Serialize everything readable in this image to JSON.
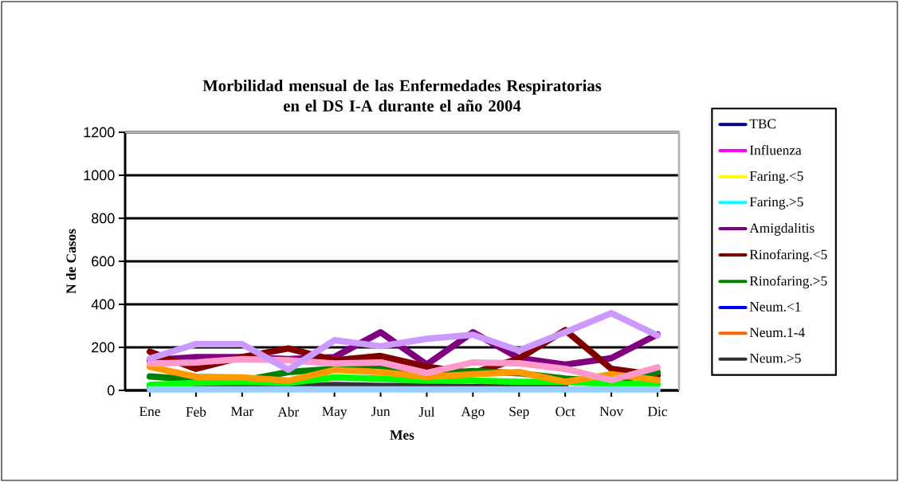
{
  "chart_data": {
    "type": "line",
    "title": "Morbilidad mensual de las Enfermedades Respiratorias\nen el  DS I-A  durante el año 2004",
    "xlabel": "Mes",
    "ylabel": "N de Casos",
    "categories": [
      "Ene",
      "Feb",
      "Mar",
      "Abr",
      "May",
      "Jun",
      "Jul",
      "Ago",
      "Sep",
      "Oct",
      "Nov",
      "Dic"
    ],
    "ylim": [
      0,
      1200
    ],
    "yticks": [
      0,
      200,
      400,
      600,
      800,
      1000,
      1200
    ],
    "grid": "y",
    "legend": "right",
    "series": [
      {
        "name": "TBC",
        "color": "#000080",
        "values": [
          null,
          null,
          null,
          null,
          null,
          null,
          null,
          null,
          null,
          null,
          null,
          null
        ]
      },
      {
        "name": "Influenza",
        "color": "#ff00ff",
        "values": [
          null,
          null,
          null,
          null,
          null,
          null,
          null,
          null,
          null,
          null,
          null,
          null
        ]
      },
      {
        "name": "Faring.<5",
        "color": "#ffff00",
        "values": [
          null,
          null,
          null,
          null,
          null,
          null,
          null,
          null,
          null,
          null,
          null,
          null
        ]
      },
      {
        "name": "Faring.>5",
        "color": "#00ffff",
        "values": [
          null,
          null,
          null,
          null,
          null,
          null,
          null,
          null,
          null,
          null,
          null,
          null
        ]
      },
      {
        "name": "Amigdalitis",
        "color": "#800080",
        "values": [
          140,
          155,
          155,
          145,
          155,
          270,
          120,
          270,
          150,
          120,
          150,
          260
        ]
      },
      {
        "name": "Rinofaring.<5",
        "color": "#800000",
        "values": [
          180,
          100,
          155,
          195,
          140,
          160,
          110,
          80,
          148,
          280,
          100,
          70
        ]
      },
      {
        "name": "Rinofaring.>5",
        "color": "#008000",
        "values": [
          65,
          50,
          45,
          85,
          100,
          100,
          75,
          90,
          80,
          55,
          40,
          85
        ]
      },
      {
        "name": "Neum.<1",
        "color": "#0000ff",
        "values": [
          null,
          null,
          null,
          null,
          null,
          null,
          null,
          null,
          null,
          null,
          null,
          null
        ]
      },
      {
        "name": "Neum.1-4",
        "color": "#ff6600",
        "values": [
          null,
          null,
          null,
          null,
          null,
          null,
          null,
          null,
          null,
          null,
          null,
          null
        ]
      },
      {
        "name": "Neum.>5",
        "color": "#333333",
        "values": [
          10,
          15,
          20,
          15,
          25,
          20,
          20,
          15,
          25,
          20,
          null,
          null
        ]
      },
      {
        "color": "#00ff00",
        "values": [
          25,
          35,
          40,
          35,
          60,
          55,
          45,
          45,
          40,
          40,
          30,
          30
        ]
      },
      {
        "color": "#ff9900",
        "values": [
          110,
          63,
          60,
          45,
          95,
          85,
          63,
          75,
          85,
          40,
          75,
          48
        ]
      },
      {
        "color": "#ff99cc",
        "values": [
          125,
          130,
          145,
          140,
          125,
          130,
          81,
          130,
          126,
          100,
          48,
          107
        ]
      },
      {
        "color": "#cc99ff",
        "values": [
          148,
          215,
          215,
          96,
          233,
          205,
          240,
          258,
          185,
          270,
          359,
          255
        ]
      },
      {
        "color": "#99ccff",
        "values": [
          5,
          5,
          5,
          5,
          5,
          5,
          5,
          5,
          5,
          5,
          5,
          5
        ]
      }
    ]
  }
}
